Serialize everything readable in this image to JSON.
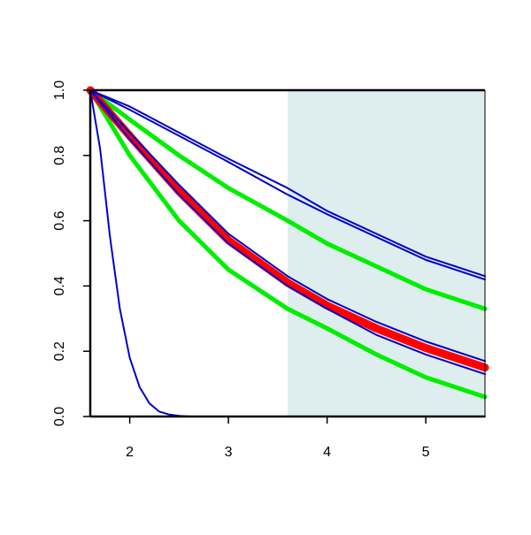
{
  "chart_data": {
    "type": "line",
    "title": "",
    "xlabel": "",
    "ylabel": "",
    "xlim": [
      1.6,
      5.6
    ],
    "ylim": [
      0,
      1
    ],
    "x_ticks": [
      2,
      3,
      4,
      5
    ],
    "x_tick_labels": [
      "2",
      "3",
      "4",
      "5"
    ],
    "y_ticks": [
      0,
      0.2,
      0.4,
      0.6,
      0.8,
      1
    ],
    "y_tick_labels": [
      "0.0",
      "0.2",
      "0.4",
      "0.6",
      "0.8",
      "1.0"
    ],
    "grid": false,
    "legend": "none",
    "shaded_region": {
      "x_from": 3.6,
      "x_to": 5.6,
      "color": "#deeded"
    },
    "colors": {
      "red": "#ff0000",
      "green": "#00ee00",
      "blue": "#0000cc",
      "axis": "#000000",
      "background": "#ffffff"
    },
    "series": [
      {
        "color_key": "green",
        "style": "thick",
        "x": [
          1.6,
          2.0,
          2.5,
          3.0,
          3.6,
          4.0,
          4.5,
          5.0,
          5.6
        ],
        "y": [
          1.0,
          0.91,
          0.8,
          0.7,
          0.6,
          0.53,
          0.46,
          0.39,
          0.33
        ]
      },
      {
        "color_key": "green",
        "style": "thick",
        "x": [
          1.6,
          2.0,
          2.5,
          3.0,
          3.6,
          4.0,
          4.5,
          5.0,
          5.6
        ],
        "y": [
          1.0,
          0.8,
          0.6,
          0.45,
          0.33,
          0.27,
          0.19,
          0.12,
          0.06
        ]
      },
      {
        "color_key": "red",
        "style": "thickest",
        "x": [
          1.6,
          2.0,
          2.5,
          3.0,
          3.6,
          4.0,
          4.5,
          5.0,
          5.6
        ],
        "y": [
          1.0,
          0.86,
          0.69,
          0.54,
          0.41,
          0.34,
          0.27,
          0.21,
          0.15
        ]
      },
      {
        "color_key": "blue",
        "style": "thin",
        "x": [
          1.6,
          2.0,
          2.5,
          3.0,
          3.6,
          4.0,
          4.5,
          5.0,
          5.6
        ],
        "y": [
          1.0,
          0.95,
          0.87,
          0.79,
          0.7,
          0.63,
          0.56,
          0.49,
          0.43
        ]
      },
      {
        "color_key": "blue",
        "style": "thin",
        "x": [
          1.6,
          2.0,
          2.5,
          3.0,
          3.6,
          4.0,
          4.5,
          5.0,
          5.6
        ],
        "y": [
          1.0,
          0.94,
          0.86,
          0.78,
          0.68,
          0.62,
          0.55,
          0.48,
          0.42
        ]
      },
      {
        "color_key": "blue",
        "style": "thin",
        "x": [
          1.6,
          2.0,
          2.5,
          3.0,
          3.6,
          4.0,
          4.5,
          5.0,
          5.6
        ],
        "y": [
          1.0,
          0.87,
          0.71,
          0.56,
          0.43,
          0.36,
          0.29,
          0.23,
          0.17
        ]
      },
      {
        "color_key": "blue",
        "style": "thin",
        "x": [
          1.6,
          2.0,
          2.5,
          3.0,
          3.6,
          4.0,
          4.5,
          5.0,
          5.6
        ],
        "y": [
          1.0,
          0.85,
          0.68,
          0.53,
          0.4,
          0.33,
          0.25,
          0.19,
          0.13
        ]
      },
      {
        "color_key": "blue",
        "style": "thin",
        "x": [
          1.6,
          1.7,
          1.8,
          1.9,
          2.0,
          2.1,
          2.2,
          2.3,
          2.4,
          2.5,
          2.6,
          2.8,
          3.0,
          4.0,
          5.0,
          5.6
        ],
        "y": [
          1.0,
          0.82,
          0.55,
          0.33,
          0.18,
          0.09,
          0.04,
          0.015,
          0.006,
          0.002,
          0.0,
          0.0,
          0.0,
          0.0,
          0.0,
          0.0
        ]
      }
    ]
  }
}
